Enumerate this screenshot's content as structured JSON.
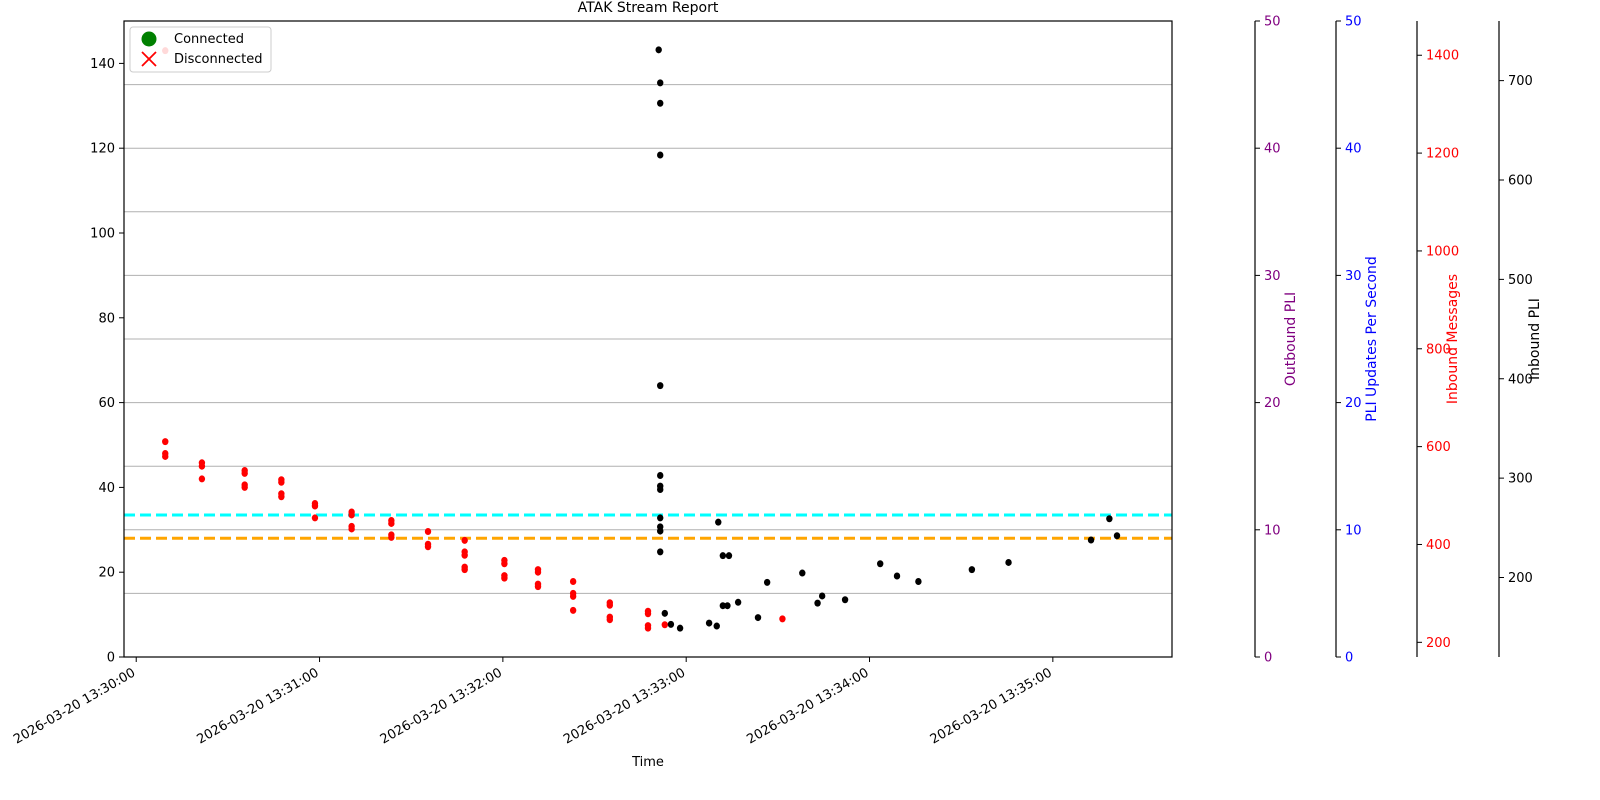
{
  "chart_data": {
    "type": "scatter",
    "title": "ATAK Stream Report",
    "xlabel": "Time",
    "x_ticks": [
      "2026-03-20 13:30:00",
      "2026-03-20 13:31:00",
      "2026-03-20 13:32:00",
      "2026-03-20 13:33:00",
      "2026-03-20 13:34:00",
      "2026-03-20 13:35:00"
    ],
    "x_range": [
      "2026-03-20 13:29:56",
      "2026-03-20 13:35:39"
    ],
    "ylim": [
      0,
      150
    ],
    "y_ticks": [
      0,
      20,
      40,
      60,
      80,
      100,
      120,
      140
    ],
    "grid": "horizontal",
    "legend": {
      "placement": "top-left",
      "entries": [
        {
          "label": "Connected",
          "marker": "circle",
          "color": "#008000"
        },
        {
          "label": "Disconnected",
          "marker": "x",
          "color": "#ff0000"
        }
      ]
    },
    "secondary_axes": [
      {
        "label": "Outbound PLI",
        "color": "#800080",
        "range": [
          0,
          50
        ],
        "ticks": [
          0,
          10,
          20,
          30,
          40,
          50
        ]
      },
      {
        "label": "PLI Updates Per Second",
        "color": "#0000ff",
        "range": [
          0,
          50
        ],
        "ticks": [
          0,
          10,
          20,
          30,
          40,
          50
        ]
      },
      {
        "label": "Inbound Messages",
        "color": "#ff0000",
        "range": [
          170,
          1470
        ],
        "ticks": [
          200,
          400,
          600,
          800,
          1000,
          1200,
          1400
        ]
      },
      {
        "label": "Inbound PLI",
        "color": "#000000",
        "range": [
          120,
          760
        ],
        "ticks": [
          200,
          300,
          400,
          500,
          600,
          700
        ]
      }
    ],
    "reference_lines": [
      {
        "y": 33.5,
        "color": "#00ffff",
        "style": "dashed"
      },
      {
        "y": 28,
        "color": "#ffa500",
        "style": "dashed"
      }
    ],
    "series": [
      {
        "color": "#ff0000",
        "points": [
          {
            "x": "13:30:09.5",
            "y": 143
          },
          {
            "x": "13:30:09.5",
            "y": 50.8
          },
          {
            "x": "13:30:09.5",
            "y": 48
          },
          {
            "x": "13:30:09.5",
            "y": 47.3
          },
          {
            "x": "13:30:21.5",
            "y": 45.8
          },
          {
            "x": "13:30:21.5",
            "y": 45
          },
          {
            "x": "13:30:21.5",
            "y": 42
          },
          {
            "x": "13:30:35.5",
            "y": 44
          },
          {
            "x": "13:30:35.5",
            "y": 43.3
          },
          {
            "x": "13:30:35.5",
            "y": 40.6
          },
          {
            "x": "13:30:35.5",
            "y": 40
          },
          {
            "x": "13:30:47.5",
            "y": 41.8
          },
          {
            "x": "13:30:47.5",
            "y": 41.2
          },
          {
            "x": "13:30:47.5",
            "y": 38.5
          },
          {
            "x": "13:30:47.5",
            "y": 37.8
          },
          {
            "x": "13:30:58.5",
            "y": 36.2
          },
          {
            "x": "13:30:58.5",
            "y": 35.6
          },
          {
            "x": "13:30:58.5",
            "y": 32.8
          },
          {
            "x": "13:31:10.5",
            "y": 34.2
          },
          {
            "x": "13:31:10.5",
            "y": 33.5
          },
          {
            "x": "13:31:10.5",
            "y": 30.8
          },
          {
            "x": "13:31:10.5",
            "y": 30.2
          },
          {
            "x": "13:31:23.5",
            "y": 32.2
          },
          {
            "x": "13:31:23.5",
            "y": 31.5
          },
          {
            "x": "13:31:23.5",
            "y": 28.8
          },
          {
            "x": "13:31:23.5",
            "y": 28.2
          },
          {
            "x": "13:31:35.5",
            "y": 29.6
          },
          {
            "x": "13:31:35.5",
            "y": 26.6
          },
          {
            "x": "13:31:35.5",
            "y": 26
          },
          {
            "x": "13:31:47.5",
            "y": 27.5
          },
          {
            "x": "13:31:47.5",
            "y": 24.8
          },
          {
            "x": "13:31:47.5",
            "y": 24
          },
          {
            "x": "13:31:47.5",
            "y": 21.2
          },
          {
            "x": "13:31:47.5",
            "y": 20.6
          },
          {
            "x": "13:32:00.5",
            "y": 22.8
          },
          {
            "x": "13:32:00.5",
            "y": 22
          },
          {
            "x": "13:32:00.5",
            "y": 19.2
          },
          {
            "x": "13:32:00.5",
            "y": 18.6
          },
          {
            "x": "13:32:11.5",
            "y": 20.6
          },
          {
            "x": "13:32:11.5",
            "y": 20
          },
          {
            "x": "13:32:11.5",
            "y": 17.2
          },
          {
            "x": "13:32:11.5",
            "y": 16.6
          },
          {
            "x": "13:32:23",
            "y": 17.8
          },
          {
            "x": "13:32:23",
            "y": 15
          },
          {
            "x": "13:32:23",
            "y": 14.3
          },
          {
            "x": "13:32:23",
            "y": 11
          },
          {
            "x": "13:32:35",
            "y": 12.8
          },
          {
            "x": "13:32:35",
            "y": 12.2
          },
          {
            "x": "13:32:35",
            "y": 9.4
          },
          {
            "x": "13:32:35",
            "y": 8.8
          },
          {
            "x": "13:32:47.5",
            "y": 10.8
          },
          {
            "x": "13:32:47.5",
            "y": 10.2
          },
          {
            "x": "13:32:47.5",
            "y": 7.4
          },
          {
            "x": "13:32:47.5",
            "y": 6.8
          },
          {
            "x": "13:32:53",
            "y": 7.6
          },
          {
            "x": "13:33:31.5",
            "y": 9
          }
        ]
      },
      {
        "color": "#000000",
        "points": [
          {
            "x": "13:32:51",
            "y": 143.2
          },
          {
            "x": "13:32:51.5",
            "y": 135.4
          },
          {
            "x": "13:32:51.5",
            "y": 130.6
          },
          {
            "x": "13:32:51.5",
            "y": 118.4
          },
          {
            "x": "13:32:51.5",
            "y": 64
          },
          {
            "x": "13:32:51.5",
            "y": 42.8
          },
          {
            "x": "13:32:51.5",
            "y": 40.3
          },
          {
            "x": "13:32:51.5",
            "y": 39.5
          },
          {
            "x": "13:32:51.5",
            "y": 32.8
          },
          {
            "x": "13:32:51.5",
            "y": 30.7
          },
          {
            "x": "13:32:51.5",
            "y": 29.7
          },
          {
            "x": "13:32:51.5",
            "y": 24.8
          },
          {
            "x": "13:32:53",
            "y": 10.3
          },
          {
            "x": "13:32:55",
            "y": 7.7
          },
          {
            "x": "13:32:58",
            "y": 6.8
          },
          {
            "x": "13:33:07.5",
            "y": 8
          },
          {
            "x": "13:33:10",
            "y": 7.3
          },
          {
            "x": "13:33:10.5",
            "y": 31.8
          },
          {
            "x": "13:33:12",
            "y": 23.9
          },
          {
            "x": "13:33:12",
            "y": 12.1
          },
          {
            "x": "13:33:13.5",
            "y": 12.1
          },
          {
            "x": "13:33:14",
            "y": 23.9
          },
          {
            "x": "13:33:17",
            "y": 12.9
          },
          {
            "x": "13:33:23.5",
            "y": 9.3
          },
          {
            "x": "13:33:26.5",
            "y": 17.6
          },
          {
            "x": "13:33:38",
            "y": 19.8
          },
          {
            "x": "13:33:43",
            "y": 12.7
          },
          {
            "x": "13:33:44.5",
            "y": 14.4
          },
          {
            "x": "13:33:52",
            "y": 13.5
          },
          {
            "x": "13:34:03.5",
            "y": 22
          },
          {
            "x": "13:34:09",
            "y": 19.1
          },
          {
            "x": "13:34:16",
            "y": 17.8
          },
          {
            "x": "13:34:33.5",
            "y": 20.6
          },
          {
            "x": "13:34:45.5",
            "y": 22.3
          },
          {
            "x": "13:35:12.5",
            "y": 27.6
          },
          {
            "x": "13:35:18.5",
            "y": 32.6
          },
          {
            "x": "13:35:21",
            "y": 28.6
          }
        ]
      }
    ]
  }
}
